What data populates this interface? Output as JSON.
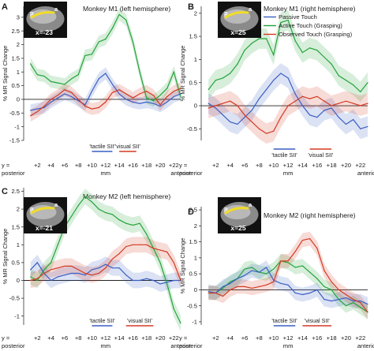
{
  "colors": {
    "passive": "#3a5fc4",
    "active": "#24a33a",
    "observed": "#d43a22",
    "tactile_bar": "#3a5fc4",
    "visual_bar": "#d43a22"
  },
  "slice_ticks": [
    "+2",
    "+4",
    "+6",
    "+8",
    "+10",
    "+12",
    "+14",
    "+16",
    "+18",
    "+20",
    "+22"
  ],
  "axis_words": {
    "y_eq": "y =",
    "posterior": "posterior",
    "anterior": "anterior",
    "mm": "mm"
  },
  "ylabel": "% MR Signal Change",
  "legend": [
    "Passive Touch",
    "Active Touch (Grasping)",
    "Observed Touch (Grasping)"
  ],
  "roi_labels": {
    "tactile": "'tactile SII'",
    "visual": "'visual SII'"
  },
  "insets": [
    {
      "x_label": "x=-23",
      "p": "p",
      "a": "a"
    },
    {
      "x_label": "x=25",
      "p": "p",
      "a": "a"
    },
    {
      "x_label": "x=-21",
      "p": "p",
      "a": "a"
    },
    {
      "x_label": "x=25",
      "p": "p",
      "a": "a"
    }
  ],
  "chart_data": [
    {
      "panel": "A",
      "title": "Monkey M1 (left hemisphere)",
      "type": "line",
      "ylabel": "% MR Signal Change",
      "ylim": [
        -1.5,
        3.4
      ],
      "yticks": [
        -1.5,
        -1,
        -0.5,
        0,
        0.5,
        1,
        1.5,
        2,
        2.5,
        3
      ],
      "xlim": [
        0,
        23
      ],
      "x": [
        1,
        2,
        3,
        4,
        5,
        6,
        7,
        8,
        9,
        10,
        11,
        12,
        13,
        14,
        15,
        16,
        17,
        18,
        19,
        20,
        21,
        22,
        23
      ],
      "series": [
        {
          "name": "Active Touch (Grasping)",
          "values": [
            1.3,
            0.9,
            0.85,
            0.65,
            0.6,
            0.55,
            0.75,
            0.9,
            1.6,
            1.65,
            2.1,
            2.2,
            2.6,
            3.1,
            2.9,
            2.1,
            1.0,
            0.05,
            -0.05,
            0.15,
            0.4,
            1.0,
            0.1
          ]
        },
        {
          "name": "Passive Touch",
          "values": [
            -0.4,
            -0.35,
            -0.3,
            -0.1,
            0.05,
            0.2,
            0.1,
            -0.05,
            -0.2,
            0.3,
            0.75,
            0.95,
            0.55,
            0.2,
            0.0,
            -0.1,
            -0.15,
            -0.1,
            -0.15,
            -0.25,
            -0.1,
            0.1,
            0.2
          ]
        },
        {
          "name": "Observed Touch (Grasping)",
          "values": [
            -0.6,
            -0.45,
            -0.25,
            0.0,
            0.15,
            0.35,
            0.25,
            0.0,
            -0.25,
            -0.35,
            -0.3,
            -0.1,
            0.25,
            0.35,
            0.2,
            0.05,
            0.2,
            0.3,
            0.15,
            -0.2,
            0.1,
            0.3,
            0.4
          ]
        }
      ],
      "roi": {
        "tactile": [
          10,
          13
        ],
        "visual": [
          14,
          16.5
        ]
      }
    },
    {
      "panel": "B",
      "title": "Monkey M1 (right hemisphere)",
      "type": "line",
      "ylabel": "% MR Signal Change",
      "ylim": [
        -0.75,
        2.15
      ],
      "yticks": [
        -0.5,
        0,
        0.5,
        1,
        1.5,
        2
      ],
      "xlim": [
        0,
        23
      ],
      "x": [
        1,
        2,
        3,
        4,
        5,
        6,
        7,
        8,
        9,
        10,
        11,
        12,
        13,
        14,
        15,
        16,
        17,
        18,
        19,
        20,
        21,
        22,
        23
      ],
      "series": [
        {
          "name": "Active Touch (Grasping)",
          "values": [
            0.35,
            0.55,
            0.6,
            0.7,
            0.9,
            1.2,
            1.35,
            1.45,
            1.45,
            1.1,
            1.8,
            1.85,
            1.4,
            1.15,
            1.25,
            1.2,
            1.05,
            0.9,
            0.65,
            0.55,
            0.45,
            0.3,
            0.5
          ]
        },
        {
          "name": "Passive Touch",
          "values": [
            0.05,
            -0.05,
            -0.2,
            -0.35,
            -0.4,
            -0.25,
            -0.1,
            0.15,
            0.35,
            0.55,
            0.7,
            0.6,
            0.25,
            0.0,
            -0.2,
            -0.25,
            -0.1,
            -0.05,
            -0.25,
            -0.4,
            -0.3,
            -0.5,
            -0.45
          ]
        },
        {
          "name": "Observed Touch (Grasping)",
          "values": [
            -0.05,
            0.0,
            0.05,
            0.1,
            0.0,
            -0.2,
            -0.35,
            -0.5,
            -0.6,
            -0.55,
            -0.25,
            0.0,
            0.1,
            0.2,
            0.15,
            0.2,
            0.1,
            0.0,
            0.05,
            0.1,
            0.05,
            0.0,
            0.05
          ]
        }
      ],
      "roi": {
        "tactile": [
          10,
          13
        ],
        "visual": [
          15,
          18
        ]
      }
    },
    {
      "panel": "C",
      "title": "Monkey M2 (left hemisphere)",
      "type": "line",
      "ylabel": "% MR Signal Change",
      "ylim": [
        -1.25,
        2.6
      ],
      "yticks": [
        -1,
        -0.5,
        0,
        0.5,
        1,
        1.5,
        2,
        2.5
      ],
      "xlim": [
        0,
        23
      ],
      "x": [
        1,
        2,
        3,
        4,
        5,
        6,
        7,
        8,
        9,
        10,
        11,
        12,
        13,
        14,
        15,
        16,
        17,
        18,
        19,
        20,
        21,
        22,
        23
      ],
      "series": [
        {
          "name": "Active Touch (Grasping)",
          "values": [
            0.1,
            0.0,
            0.3,
            0.5,
            1.0,
            1.5,
            1.8,
            2.1,
            2.35,
            2.2,
            2.0,
            1.9,
            1.85,
            1.7,
            1.6,
            1.55,
            1.6,
            1.3,
            0.9,
            0.5,
            -0.1,
            -0.8,
            -1.2
          ]
        },
        {
          "name": "Passive Touch",
          "values": [
            0.3,
            0.5,
            0.2,
            0.0,
            0.1,
            0.15,
            0.2,
            0.2,
            0.15,
            0.3,
            0.35,
            0.45,
            0.35,
            0.35,
            0.15,
            0.0,
            0.0,
            0.05,
            0.0,
            -0.1,
            -0.05,
            0.0,
            0.0
          ]
        },
        {
          "name": "Observed Touch (Grasping)",
          "values": [
            0.0,
            0.05,
            0.2,
            0.3,
            0.35,
            0.4,
            0.4,
            0.3,
            0.2,
            0.15,
            0.2,
            0.35,
            0.6,
            0.75,
            0.95,
            1.0,
            1.0,
            1.0,
            0.9,
            0.85,
            0.8,
            0.5,
            0.0
          ]
        }
      ],
      "roi": {
        "tactile": [
          10,
          13
        ],
        "visual": [
          15,
          19
        ]
      }
    },
    {
      "panel": "D",
      "title": "Monkey M2 (right hemisphere)",
      "type": "line",
      "ylabel": "% MR Signal Change",
      "ylim": [
        -1.1,
        2.6
      ],
      "yticks": [
        -1,
        -0.5,
        0,
        0.5,
        1,
        1.5,
        2,
        2.5
      ],
      "xlim": [
        0,
        23
      ],
      "x": [
        1,
        2,
        3,
        4,
        5,
        6,
        7,
        8,
        9,
        10,
        11,
        12,
        13,
        14,
        15,
        16,
        17,
        18,
        19,
        20,
        21,
        22,
        23
      ],
      "series": [
        {
          "name": "Active Touch (Grasping)",
          "values": [
            -0.1,
            -0.1,
            0.05,
            0.25,
            0.35,
            0.65,
            0.7,
            0.55,
            0.5,
            0.65,
            0.9,
            0.85,
            0.7,
            0.75,
            0.55,
            0.35,
            0.1,
            0.0,
            -0.3,
            -0.5,
            -0.4,
            -0.55,
            -0.7
          ]
        },
        {
          "name": "Passive Touch",
          "values": [
            -0.05,
            -0.1,
            0.1,
            0.2,
            0.35,
            0.45,
            0.6,
            0.55,
            0.7,
            0.3,
            0.2,
            0.15,
            -0.1,
            -0.15,
            -0.1,
            0.0,
            -0.3,
            -0.35,
            -0.3,
            -0.25,
            -0.35,
            -0.35,
            -0.45
          ]
        },
        {
          "name": "Observed Touch (Grasping)",
          "values": [
            -0.1,
            -0.1,
            -0.2,
            0.0,
            0.1,
            0.1,
            0.05,
            0.1,
            0.15,
            0.25,
            0.9,
            0.9,
            1.2,
            1.55,
            1.6,
            1.3,
            0.6,
            0.25,
            0.0,
            -0.15,
            -0.3,
            -0.4,
            -0.7
          ]
        }
      ],
      "roi": {
        "tactile": [
          10,
          13
        ],
        "visual": [
          14,
          18
        ]
      }
    }
  ]
}
